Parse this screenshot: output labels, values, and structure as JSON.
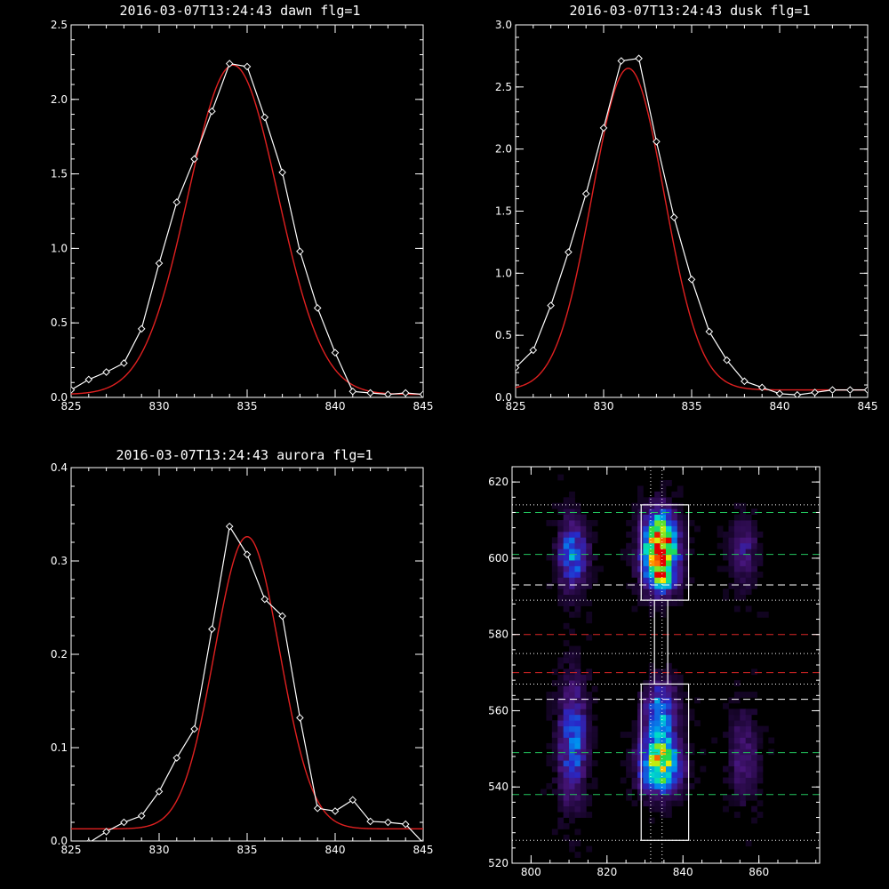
{
  "colors": {
    "background": "#000000",
    "axes": "#ffffff",
    "observed": "#ffffff",
    "fit": "#e02020",
    "guide_green": "#22c55e",
    "guide_red": "#dc2626",
    "guide_white": "#ffffff"
  },
  "chart_data": [
    {
      "id": "dawn",
      "type": "line",
      "title": "2016-03-07T13:24:43 dawn flg=1",
      "xlim": [
        825,
        845
      ],
      "ylim": [
        0,
        2.5
      ],
      "xticks": [
        "825",
        "830",
        "835",
        "840",
        "845"
      ],
      "yticks": [
        "0.0",
        "0.5",
        "1.0",
        "1.5",
        "2.0",
        "2.5"
      ],
      "series": [
        {
          "role": "observed",
          "marker": "diamond",
          "x": [
            825,
            826,
            827,
            828,
            829,
            830,
            831,
            832,
            833,
            834,
            835,
            836,
            837,
            838,
            839,
            840,
            841,
            842,
            843,
            844,
            845
          ],
          "y": [
            0.05,
            0.12,
            0.17,
            0.23,
            0.46,
            0.9,
            1.31,
            1.6,
            1.92,
            2.24,
            2.22,
            1.88,
            1.51,
            0.98,
            0.6,
            0.3,
            0.04,
            0.03,
            0.02,
            0.03,
            0.02
          ]
        },
        {
          "role": "fit",
          "model": "gaussian",
          "amplitude": 2.21,
          "center": 834.2,
          "sigma": 2.55,
          "offset": 0.02
        }
      ]
    },
    {
      "id": "dusk",
      "type": "line",
      "title": "2016-03-07T13:24:43 dusk flg=1",
      "xlim": [
        825,
        845
      ],
      "ylim": [
        0,
        3.0
      ],
      "xticks": [
        "825",
        "830",
        "835",
        "840",
        "845"
      ],
      "yticks": [
        "0.0",
        "0.5",
        "1.0",
        "1.5",
        "2.0",
        "2.5",
        "3.0"
      ],
      "series": [
        {
          "role": "observed",
          "marker": "diamond",
          "x": [
            825,
            826,
            827,
            828,
            829,
            830,
            831,
            832,
            833,
            834,
            835,
            836,
            837,
            838,
            839,
            840,
            841,
            842,
            843,
            844,
            845
          ],
          "y": [
            0.24,
            0.38,
            0.74,
            1.17,
            1.64,
            2.17,
            2.71,
            2.73,
            2.06,
            1.45,
            0.95,
            0.53,
            0.3,
            0.13,
            0.08,
            0.03,
            0.02,
            0.04,
            0.06,
            0.06,
            0.06
          ]
        },
        {
          "role": "fit",
          "model": "gaussian",
          "amplitude": 2.59,
          "center": 831.4,
          "sigma": 2.05,
          "offset": 0.06
        }
      ]
    },
    {
      "id": "aurora",
      "type": "line",
      "title": "2016-03-07T13:24:43 aurora flg=1",
      "xlim": [
        825,
        845
      ],
      "ylim": [
        0,
        0.4
      ],
      "xticks": [
        "825",
        "830",
        "835",
        "840",
        "845"
      ],
      "yticks": [
        "0.0",
        "0.1",
        "0.2",
        "0.3",
        "0.4"
      ],
      "series": [
        {
          "role": "observed",
          "marker": "diamond",
          "x": [
            825,
            826,
            827,
            828,
            829,
            830,
            831,
            832,
            833,
            834,
            835,
            836,
            837,
            838,
            839,
            840,
            841,
            842,
            843,
            844,
            845
          ],
          "y": [
            -0.01,
            -0.002,
            0.01,
            0.02,
            0.027,
            0.053,
            0.089,
            0.12,
            0.227,
            0.337,
            0.307,
            0.259,
            0.241,
            0.132,
            0.035,
            0.032,
            0.044,
            0.021,
            0.02,
            0.018,
            -0.002
          ]
        },
        {
          "role": "fit",
          "model": "gaussian",
          "amplitude": 0.313,
          "center": 835.0,
          "sigma": 1.85,
          "offset": 0.013
        }
      ]
    },
    {
      "id": "image",
      "type": "heatmap",
      "title": "",
      "xlim": [
        795,
        876
      ],
      "ylim": [
        520,
        624
      ],
      "xticks": [
        "800",
        "820",
        "840",
        "860"
      ],
      "yticks": [
        "520",
        "540",
        "560",
        "580",
        "600",
        "620"
      ],
      "colormap": "rainbow",
      "sources": [
        {
          "x": 834,
          "y": 604,
          "sx": 3.0,
          "sy": 5.5,
          "amp": 1.0
        },
        {
          "x": 834,
          "y": 596,
          "sx": 3.0,
          "sy": 4.0,
          "amp": 0.55
        },
        {
          "x": 834,
          "y": 546,
          "sx": 3.5,
          "sy": 5.0,
          "amp": 0.85
        },
        {
          "x": 834,
          "y": 560,
          "sx": 3.0,
          "sy": 5.0,
          "amp": 0.45
        },
        {
          "x": 811,
          "y": 601,
          "sx": 2.5,
          "sy": 6.0,
          "amp": 0.45
        },
        {
          "x": 811,
          "y": 552,
          "sx": 2.5,
          "sy": 11.0,
          "amp": 0.4
        },
        {
          "x": 856,
          "y": 602,
          "sx": 2.5,
          "sy": 6.0,
          "amp": 0.2
        },
        {
          "x": 856,
          "y": 548,
          "sx": 2.5,
          "sy": 8.0,
          "amp": 0.2
        }
      ],
      "guides": {
        "green_dashed_y": [
          612,
          601,
          549,
          538
        ],
        "red_dashed_y": [
          580,
          570
        ],
        "white_dashed_y": [
          593,
          563
        ],
        "white_dotted_y": [
          614,
          589,
          575,
          567,
          526
        ],
        "white_dotted_x": [
          831.5,
          834.5
        ]
      },
      "boxes": [
        {
          "x0": 829,
          "x1": 841.5,
          "y0": 589,
          "y1": 614
        },
        {
          "x0": 829,
          "x1": 841.5,
          "y0": 526,
          "y1": 567
        },
        {
          "x0": 832.5,
          "x1": 836,
          "y0": 567,
          "y1": 589
        }
      ]
    }
  ]
}
